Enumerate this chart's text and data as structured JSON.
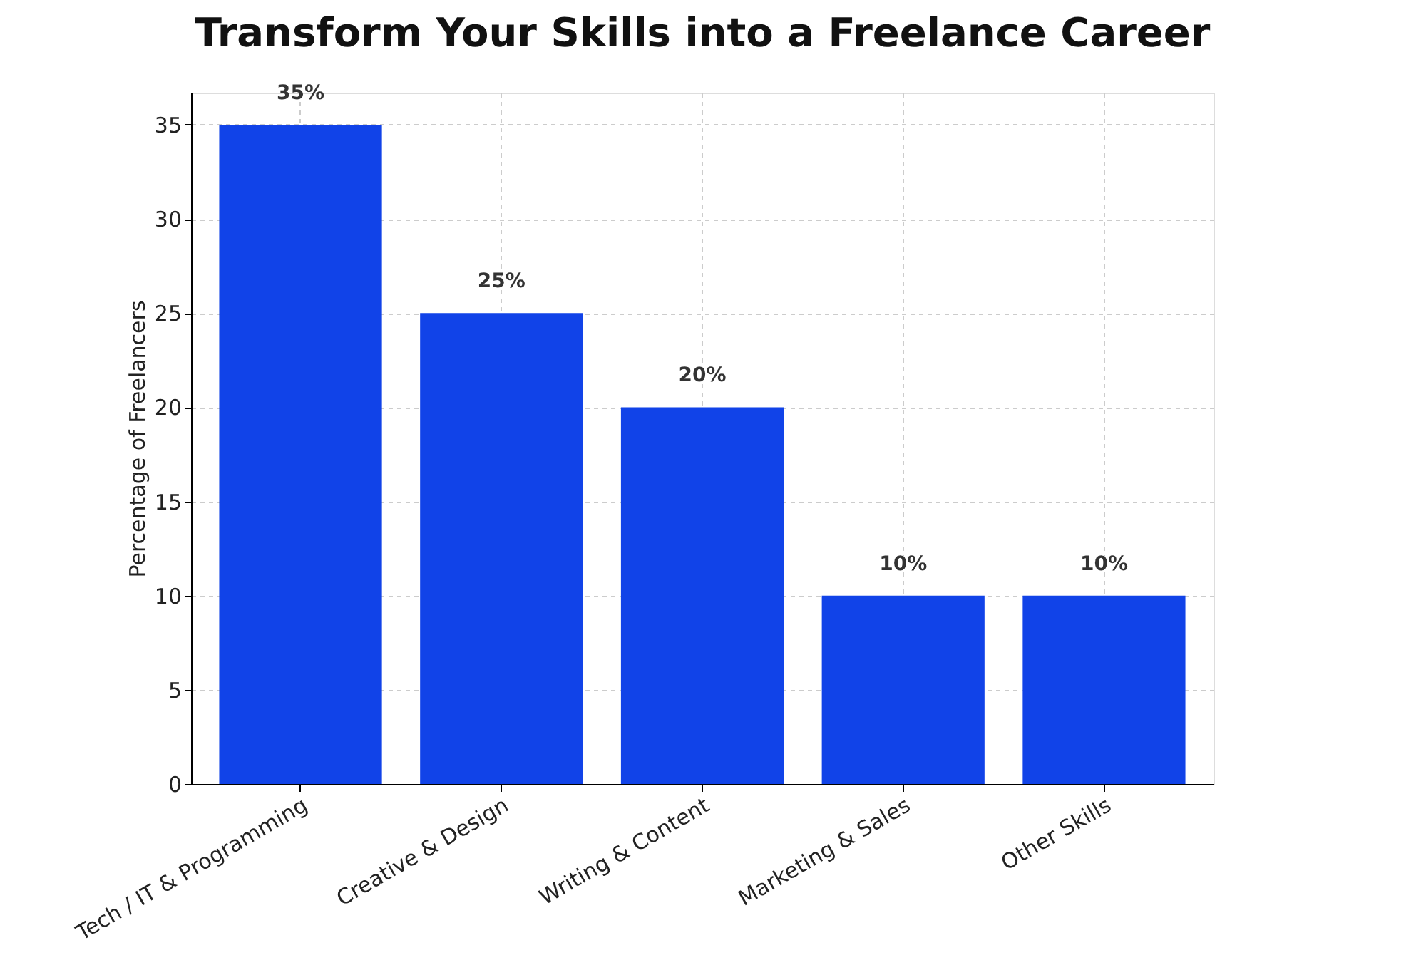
{
  "chart_data": {
    "type": "bar",
    "title": "Transform Your Skills into a Freelance Career",
    "ylabel": "Percentage of Freelancers",
    "categories": [
      "Tech / IT & Programming",
      "Creative & Design",
      "Writing & Content",
      "Marketing & Sales",
      "Other Skills"
    ],
    "values": [
      35,
      25,
      20,
      10,
      10
    ],
    "value_labels": [
      "35%",
      "25%",
      "20%",
      "10%",
      "10%"
    ],
    "color": "#1143e8",
    "ylim": [
      0,
      36.7
    ],
    "yticks": [
      0,
      5,
      10,
      15,
      20,
      25,
      30,
      35
    ],
    "grid": true
  }
}
